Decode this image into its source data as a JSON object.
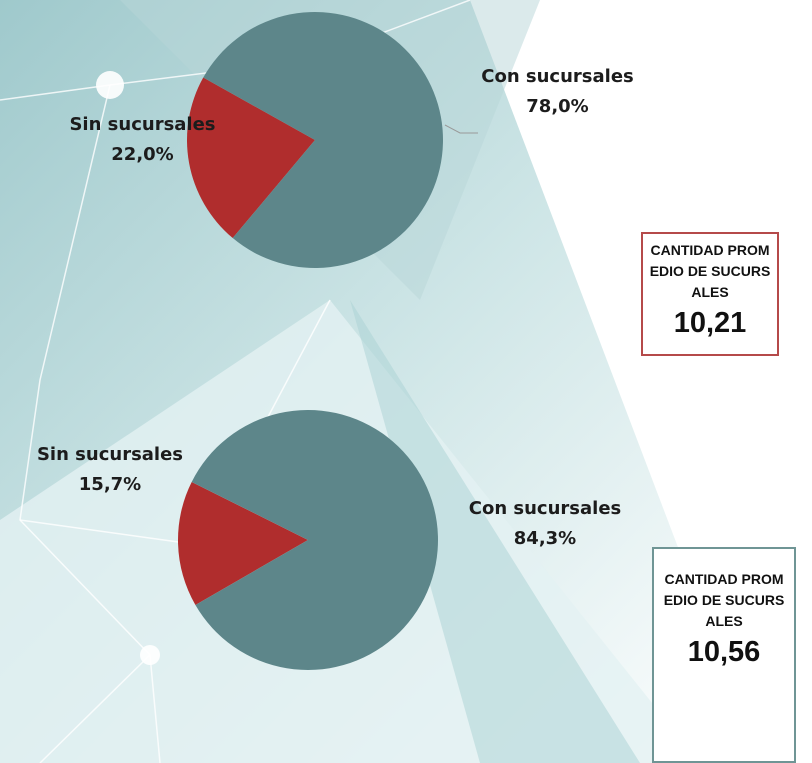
{
  "chart_data": [
    {
      "type": "pie",
      "categories": [
        "Sin sucursales",
        "Con sucursales"
      ],
      "values": [
        22.0,
        78.0
      ],
      "value_labels": [
        "22,0%",
        "78,0%"
      ],
      "colors": [
        "#b02d2d",
        "#5d868a"
      ]
    },
    {
      "type": "pie",
      "categories": [
        "Sin sucursales",
        "Con sucursales"
      ],
      "values": [
        15.7,
        84.3
      ],
      "value_labels": [
        "15,7%",
        "84,3%"
      ],
      "colors": [
        "#b02d2d",
        "#5d868a"
      ]
    }
  ],
  "boxes": [
    {
      "label": "CANTIDAD PROMEDIO DE SUCURSALES",
      "value": "10,21",
      "color": "#b54a4a"
    },
    {
      "label": "CANTIDAD PROMEDIO DE SUCURSALES",
      "value": "10,56",
      "color": "#6f9595"
    }
  ]
}
